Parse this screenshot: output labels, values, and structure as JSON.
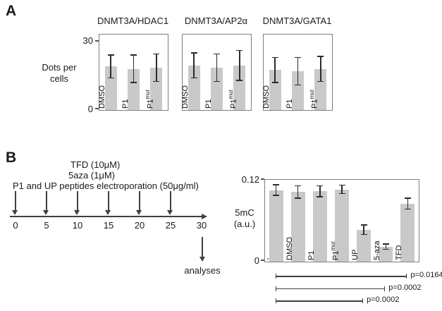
{
  "panel_a": {
    "label": "A"
  },
  "panel_b": {
    "label": "B",
    "timeline": {
      "tfd_line": "TFD (10μM)",
      "aza_line": "5aza (1μM)",
      "peptide_line": "P1 and UP peptides electroporation (50μg/ml)",
      "ticks": [
        "0",
        "5",
        "10",
        "15",
        "20",
        "25",
        "30"
      ],
      "analyses_label": "analyses"
    }
  },
  "colors": {
    "bar_fill": "#c9c9c9",
    "frame": "#7f7f7f",
    "error_bar": "#2b2b2b",
    "line": "#3f3f3f",
    "text": "#1a1a1a"
  },
  "chart_data": [
    {
      "type": "bar",
      "panel": "A",
      "title": "DNMT3A/HDAC1",
      "categories": [
        "DMSO",
        "P1",
        "P1mut"
      ],
      "values": [
        19,
        18,
        18.5
      ],
      "errors": [
        5,
        6,
        6
      ],
      "xlabel": "",
      "ylabel": "Dots per cells",
      "ylim": [
        0,
        30
      ],
      "grid": false,
      "legend": "none"
    },
    {
      "type": "bar",
      "panel": "A",
      "title": "DNMT3A/AP2α",
      "categories": [
        "DMSO",
        "P1",
        "P1mut"
      ],
      "values": [
        19.5,
        18.5,
        19.5
      ],
      "errors": [
        5.5,
        6,
        6.5
      ],
      "xlabel": "",
      "ylabel": "Dots per cells",
      "ylim": [
        0,
        30
      ],
      "grid": false,
      "legend": "none"
    },
    {
      "type": "bar",
      "panel": "A",
      "title": "DNMT3A/GATA1",
      "categories": [
        "DMSO",
        "P1",
        "P1mut"
      ],
      "values": [
        17.5,
        17,
        18
      ],
      "errors": [
        5.5,
        6,
        5.5
      ],
      "xlabel": "",
      "ylabel": "Dots per cells",
      "ylim": [
        0,
        30
      ],
      "grid": false,
      "legend": "none"
    },
    {
      "type": "bar",
      "panel": "B",
      "title": "",
      "categories": [
        "-",
        "DMSO",
        "P1",
        "P1mut",
        "UP",
        "5-aza",
        "TFD"
      ],
      "values": [
        0.105,
        0.102,
        0.103,
        0.106,
        0.047,
        0.022,
        0.085
      ],
      "errors": [
        0.008,
        0.009,
        0.008,
        0.006,
        0.007,
        0.004,
        0.008
      ],
      "xlabel": "",
      "ylabel": "5mC (a.u.)",
      "ylim": [
        0,
        0.12
      ],
      "grid": false,
      "legend": "none",
      "significance": [
        {
          "from": 0,
          "to": 6,
          "label": "p=0.0164"
        },
        {
          "from": 0,
          "to": 5,
          "label": "p=0.0002"
        },
        {
          "from": 0,
          "to": 4,
          "label": "p=0.0002"
        }
      ]
    }
  ]
}
